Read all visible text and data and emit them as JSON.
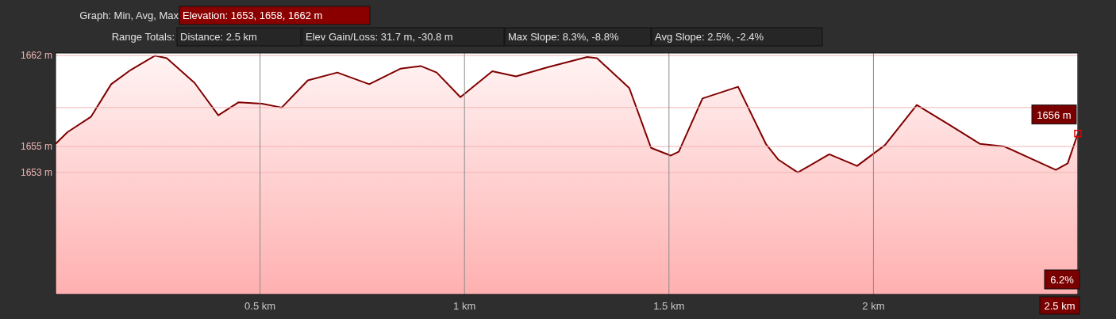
{
  "chart_data": {
    "type": "area",
    "xlim": [
      0,
      2.5
    ],
    "xticks": [
      {
        "value": 0.5,
        "label": "0.5 km"
      },
      {
        "value": 1,
        "label": "1 km"
      },
      {
        "value": 1.5,
        "label": "1.5 km"
      },
      {
        "value": 2,
        "label": "2 km"
      },
      {
        "value": 2.5,
        "label": "2.5 km"
      }
    ],
    "ylim": [
      1643.6,
      1662.2
    ],
    "yticks": [
      {
        "value": 1662,
        "label": "1662 m"
      },
      {
        "value": 1658,
        "label": null
      },
      {
        "value": 1655,
        "label": "1655 m"
      },
      {
        "value": 1653,
        "label": "1653 m"
      }
    ],
    "grid": true,
    "series": [
      {
        "color": "#800000",
        "x": [
          0,
          0.029,
          0.087,
          0.136,
          0.184,
          0.243,
          0.272,
          0.34,
          0.398,
          0.447,
          0.505,
          0.553,
          0.617,
          0.689,
          0.767,
          0.844,
          0.893,
          0.932,
          0.99,
          1.068,
          1.126,
          1.203,
          1.3,
          1.324,
          1.403,
          1.456,
          1.504,
          1.524,
          1.582,
          1.669,
          1.737,
          1.767,
          1.815,
          1.892,
          1.96,
          2.028,
          2.106,
          2.184,
          2.261,
          2.32,
          2.446,
          2.475,
          2.5
        ],
        "values": [
          1655.2,
          1656.1,
          1657.3,
          1659.8,
          1660.9,
          1662,
          1661.8,
          1659.9,
          1657.4,
          1658.4,
          1658.3,
          1658,
          1660.1,
          1660.7,
          1659.8,
          1661,
          1661.2,
          1660.7,
          1658.8,
          1660.8,
          1660.4,
          1661.1,
          1661.9,
          1661.8,
          1659.5,
          1654.9,
          1654.3,
          1654.6,
          1658.7,
          1659.6,
          1655.2,
          1654,
          1653,
          1654.4,
          1653.5,
          1655.1,
          1658.2,
          1656.7,
          1655.2,
          1655,
          1653.2,
          1653.7,
          1656
        ]
      }
    ],
    "annotations": [
      "Graph: Min, Avg, Max",
      "Elevation: 1653, 1658, 1662 m",
      "Range Totals:",
      "Distance: 2.5 km",
      "Elev Gain/Loss: 31.7 m, -30.8 m",
      "Max Slope: 8.3%, -8.8%",
      "Avg Slope: 2.5%, -2.4%",
      "6.2%",
      {
        "text": "1656 m",
        "x": 2.5,
        "y": 1656
      }
    ]
  }
}
